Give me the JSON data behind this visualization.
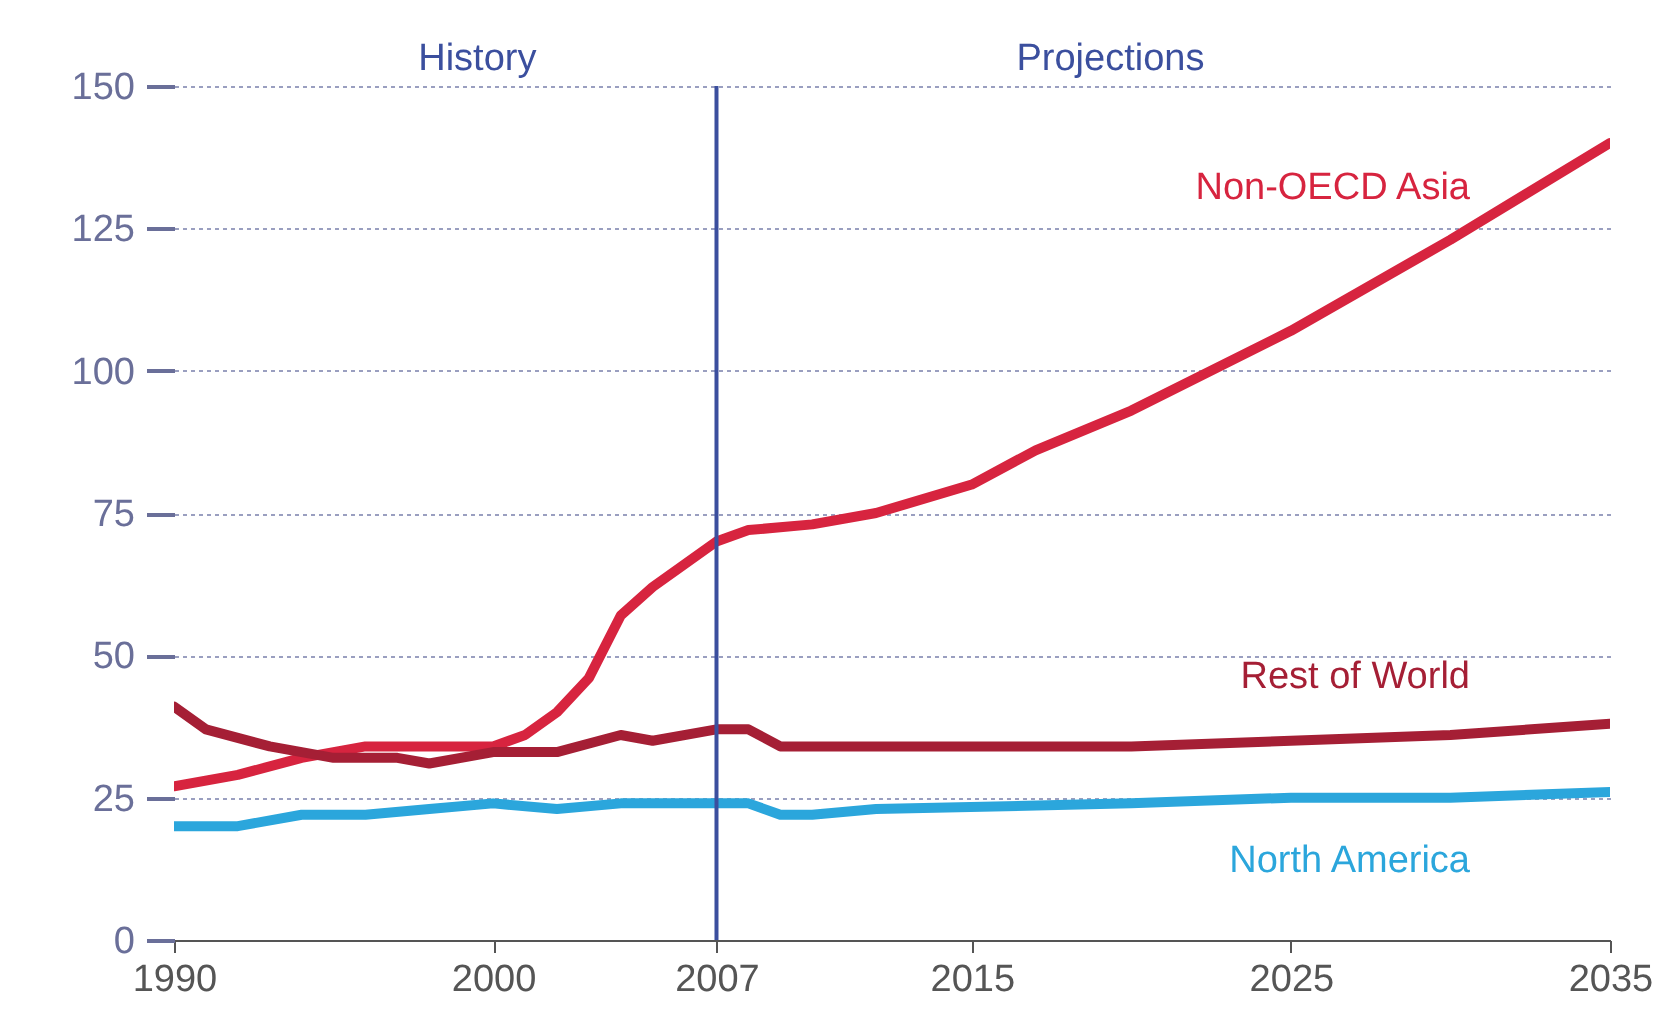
{
  "chart_data": {
    "type": "line",
    "series": [
      {
        "name": "Non-OECD Asia",
        "color": "#d7243f",
        "x": [
          1990,
          1992,
          1994,
          1996,
          1998,
          2000,
          2001,
          2002,
          2003,
          2004,
          2005,
          2006,
          2007,
          2008,
          2010,
          2012,
          2015,
          2017,
          2020,
          2025,
          2030,
          2035
        ],
        "values": [
          27,
          29,
          32,
          34,
          34,
          34,
          36,
          40,
          46,
          57,
          62,
          66,
          70,
          72,
          73,
          75,
          80,
          86,
          93,
          107,
          123,
          140
        ]
      },
      {
        "name": "Rest of World",
        "color": "#a51f35",
        "x": [
          1990,
          1991,
          1993,
          1995,
          1997,
          1998,
          2000,
          2002,
          2004,
          2005,
          2007,
          2008,
          2009,
          2015,
          2020,
          2025,
          2030,
          2035
        ],
        "values": [
          41,
          37,
          34,
          32,
          32,
          31,
          33,
          33,
          36,
          35,
          37,
          37,
          34,
          34,
          34,
          35,
          36,
          38
        ]
      },
      {
        "name": "North America",
        "color": "#2ba6dc",
        "x": [
          1990,
          1992,
          1994,
          1996,
          1998,
          2000,
          2002,
          2004,
          2006,
          2007,
          2008,
          2009,
          2010,
          2012,
          2020,
          2025,
          2030,
          2035
        ],
        "values": [
          20,
          20,
          22,
          22,
          23,
          24,
          23,
          24,
          24,
          24,
          24,
          22,
          22,
          23,
          24,
          25,
          25,
          26
        ]
      }
    ],
    "xlim": [
      1990,
      2035
    ],
    "xticks": [
      1990,
      2000,
      2007,
      2015,
      2025,
      2035
    ],
    "ylim": [
      0,
      150
    ],
    "yticks": [
      0,
      25,
      50,
      75,
      100,
      125,
      150
    ],
    "grid": "y",
    "legend": false,
    "marker": "none",
    "line_style": "solid",
    "ref_lines": [
      {
        "axis": "x",
        "value": 2007,
        "color": "#3b4f9e"
      }
    ],
    "annotations": [
      "History",
      "Projections"
    ]
  }
}
